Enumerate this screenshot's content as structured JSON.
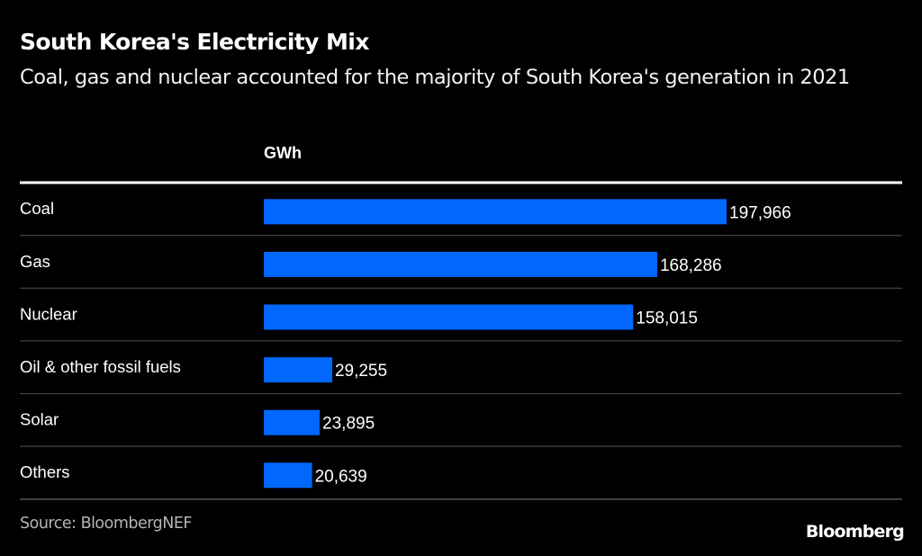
{
  "chart_data": {
    "type": "bar",
    "orientation": "horizontal",
    "title": "South Korea's Electricity Mix",
    "subtitle": "Coal, gas and nuclear accounted for the majority of South Korea's generation in 2021",
    "unit_label": "GWh",
    "categories": [
      "Coal",
      "Gas",
      "Nuclear",
      "Oil & other fossil fuels",
      "Solar",
      "Others"
    ],
    "values": [
      197966,
      168286,
      158015,
      29255,
      23895,
      20639
    ],
    "value_labels": [
      "197,966",
      "168,286",
      "158,015",
      "29,255",
      "23,895",
      "20,639"
    ],
    "xlim": [
      0,
      197966
    ],
    "grid": false,
    "legend": "none",
    "bar_color": "#0068ff",
    "source": "Source: BloombergNEF",
    "brand": "Bloomberg"
  }
}
